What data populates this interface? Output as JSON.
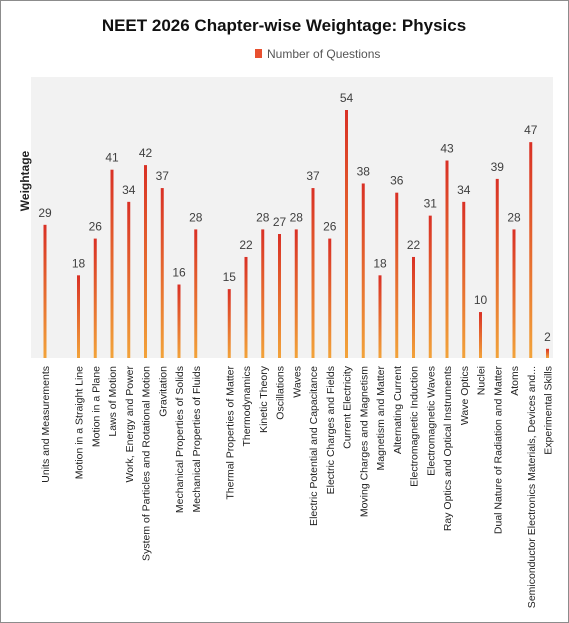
{
  "chart_data": {
    "type": "bar",
    "title": "NEET 2026 Chapter-wise Weightage: Physics",
    "ylabel": "Weightage",
    "xlabel": "",
    "legend_position": "top",
    "series": [
      {
        "name": "Number of Questions",
        "color_top": "#d93025",
        "color_bottom": "#f2a33a",
        "values": [
          29,
          null,
          18,
          26,
          41,
          34,
          42,
          37,
          16,
          28,
          null,
          15,
          22,
          28,
          27,
          28,
          37,
          26,
          54,
          38,
          18,
          36,
          22,
          31,
          43,
          34,
          10,
          39,
          28,
          47,
          2
        ]
      }
    ],
    "categories": [
      "Units and Measurements",
      "",
      "Motion in a Straight Line",
      "Motion in a Plane",
      "Laws of Motion",
      "Work, Energy and Power",
      "System of Particles and Rotational Motion",
      "Gravitation",
      "Mechanical Properties of Solids",
      "Mechanical Properties of Fluids",
      "",
      "Thermal Properties of Matter",
      "Thermodynamics",
      "Kinetic Theory",
      "Oscillations",
      "Waves",
      "Electric Potential and Capacitance",
      "Electric Charges and Fields",
      "Current Electricity",
      "Moving Charges and Magnetism",
      "Magnetism and Matter",
      "Alternating Current",
      "Electromagnetic Induction",
      "Electromagnetic Waves",
      "Ray Optics and Optical Instruments",
      "Wave Optics",
      "Nuclei",
      "Dual Nature of Radiation and Matter",
      "Atoms",
      "Semiconductor Electronics Materials, Devices and...",
      "Experimental Skills"
    ],
    "ylim": [
      0,
      60
    ],
    "grid": false,
    "colors": {
      "plot_background": "#f2f2f2",
      "legend_swatch": "#e8502f"
    }
  }
}
